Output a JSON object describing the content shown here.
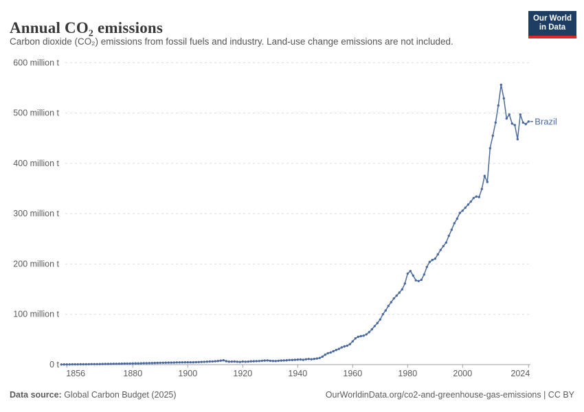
{
  "header": {
    "title": "Annual CO₂ emissions",
    "subtitle": "Carbon dioxide (CO₂) emissions from fossil fuels and industry. Land-use change emissions are not included.",
    "logo": {
      "line1": "Our World",
      "line2": "in Data",
      "bg_color": "#1d3d63",
      "bar_color": "#e0262c"
    }
  },
  "footer": {
    "source_label": "Data source:",
    "source_value": " Global Carbon Budget (2025)",
    "link_text": "OurWorldinData.org/co2-and-greenhouse-gas-emissions | CC BY"
  },
  "chart_data": {
    "type": "line",
    "title": "Annual CO₂ emissions",
    "xlabel": "",
    "ylabel": "",
    "unit": "million t",
    "xlim": [
      1854,
      2024
    ],
    "ylim": [
      0,
      600
    ],
    "grid": "horizontal-dashed",
    "legend": "end-of-line-label",
    "x_ticks": [
      1856,
      1880,
      1900,
      1920,
      1940,
      1960,
      1980,
      2000,
      2024
    ],
    "y_ticks": [
      {
        "v": 0,
        "label": "0 t"
      },
      {
        "v": 100,
        "label": "100 million t"
      },
      {
        "v": 200,
        "label": "200 million t"
      },
      {
        "v": 300,
        "label": "300 million t"
      },
      {
        "v": 400,
        "label": "400 million t"
      },
      {
        "v": 500,
        "label": "500 million t"
      },
      {
        "v": 600,
        "label": "600 million t"
      }
    ],
    "series": [
      {
        "name": "Brazil",
        "color": "#4c6a9c",
        "x_start": 1854,
        "x_step": 1,
        "values": [
          0.3,
          0.35,
          0.4,
          0.45,
          0.5,
          0.55,
          0.6,
          0.65,
          0.7,
          0.75,
          0.8,
          0.9,
          0.95,
          1.0,
          1.1,
          1.2,
          1.3,
          1.4,
          1.5,
          1.6,
          1.7,
          1.8,
          1.9,
          2.0,
          2.1,
          2.2,
          2.3,
          2.4,
          2.5,
          2.65,
          2.8,
          2.9,
          3.0,
          3.1,
          3.3,
          3.4,
          3.5,
          3.7,
          3.8,
          3.9,
          4.0,
          4.1,
          4.3,
          4.4,
          4.5,
          4.6,
          4.7,
          4.6,
          4.7,
          4.9,
          5.1,
          5.3,
          5.6,
          5.9,
          6.1,
          6.3,
          6.7,
          7.2,
          7.9,
          8.6,
          6.8,
          5.8,
          6.0,
          6.2,
          5.7,
          5.3,
          6.2,
          5.7,
          6.0,
          6.6,
          6.7,
          6.9,
          7.1,
          7.6,
          8.1,
          8.3,
          7.6,
          7.3,
          7.1,
          7.6,
          8.1,
          8.3,
          8.6,
          9.1,
          9.3,
          9.6,
          9.9,
          10.2,
          9.6,
          10.6,
          11.2,
          10.7,
          11.3,
          12.2,
          13.2,
          15.8,
          19.8,
          22.6,
          24.2,
          26.6,
          29.1,
          31.2,
          34.2,
          36.1,
          37.6,
          40.6,
          46.2,
          52.1,
          55.2,
          56.6,
          57.6,
          60.2,
          64.6,
          70.2,
          76.6,
          82.6,
          89.6,
          100.2,
          107.6,
          116.6,
          124.1,
          131.6,
          137.2,
          143.1,
          149.6,
          161,
          181,
          186,
          177,
          167.5,
          166,
          168.5,
          179,
          194,
          204,
          208,
          210.5,
          219,
          228,
          235.5,
          242.5,
          256,
          268,
          281,
          290,
          301.5,
          306,
          312,
          318,
          324,
          331,
          334,
          333,
          349,
          375,
          363,
          430,
          455,
          481,
          515,
          556,
          529,
          489,
          497,
          479,
          476,
          448,
          497,
          481,
          478,
          483
        ]
      }
    ]
  }
}
